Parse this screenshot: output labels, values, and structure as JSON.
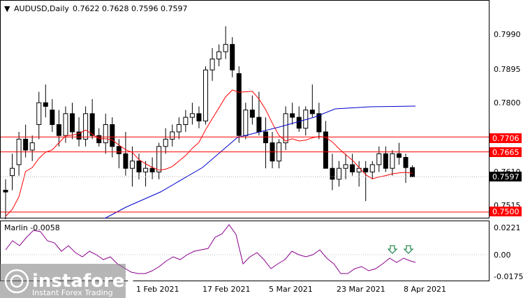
{
  "header": {
    "symbol": "AUDUSD,Daily",
    "ohlc": "0.7622 0.7628 0.7596 0.7597"
  },
  "price_axis": [
    "0.7990",
    "0.7895",
    "0.7800",
    "0.7610",
    "0.7515"
  ],
  "price_tags": [
    {
      "label": "0.7706",
      "color": "#ff0000",
      "text_color": "#ffffff",
      "value": 0.7706
    },
    {
      "label": "0.7665",
      "color": "#ff0000",
      "text_color": "#ffffff",
      "value": 0.7665
    },
    {
      "label": "0.7597",
      "color": "#000000",
      "text_color": "#ffffff",
      "value": 0.7597
    },
    {
      "label": "0.7500",
      "color": "#ff0000",
      "text_color": "#ffffff",
      "value": 0.75
    }
  ],
  "indicator": {
    "label": "Marlin -0.0058",
    "axis": [
      "0.0221",
      "0.00",
      "-0.0175"
    ],
    "color": "#8b008b"
  },
  "date_axis": [
    "1 Feb 2021",
    "17 Feb 2021",
    "5 Mar 2021",
    "23 Mar 2021",
    "8 Apr 2021"
  ],
  "colors": {
    "support_resistance": "#ff0000",
    "ma_fast": "#ff0000",
    "ma_slow": "#0000cd",
    "arrow": "#2e8b57",
    "bull": "#ffffff",
    "bear": "#000000"
  },
  "logo": {
    "name": "instaforex",
    "tagline": "Instant Forex Trading"
  }
}
